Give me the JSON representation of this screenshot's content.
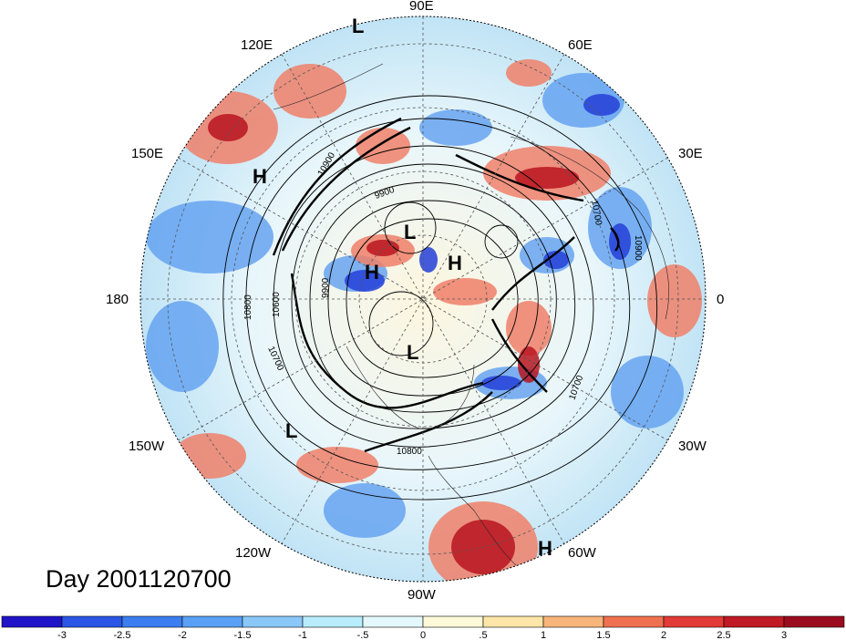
{
  "title": "Day 2001120700",
  "longitude_labels": {
    "lon_90E": "90E",
    "lon_60E": "60E",
    "lon_30E": "30E",
    "lon_0": "0",
    "lon_30W": "30W",
    "lon_60W": "60W",
    "lon_90W": "90W",
    "lon_120W": "120W",
    "lon_150W": "150W",
    "lon_180": "180",
    "lon_150E": "150E",
    "lon_120E": "120E"
  },
  "contour_labels": [
    "10900",
    "9900",
    "10800",
    "10600",
    "9900",
    "10700",
    "10700",
    "10900",
    "10800",
    "10700"
  ],
  "pressure_centers": [
    "L",
    "H",
    "L",
    "H",
    "H",
    "L",
    "L",
    "H"
  ],
  "colorbar": {
    "ticks": [
      "-3",
      "-2.5",
      "-2",
      "-1.5",
      "-1",
      "-.5",
      "0",
      ".5",
      "1",
      "1.5",
      "2",
      "2.5",
      "3"
    ],
    "colors": [
      "#1f14c8",
      "#2a55e6",
      "#3c7df0",
      "#5aa0f5",
      "#8ac8fa",
      "#b8ecfc",
      "#e4f8fc",
      "#fdf8d8",
      "#fde6a8",
      "#f8b47a",
      "#ef7050",
      "#e23a36",
      "#c01a24",
      "#9a0c1e"
    ]
  }
}
